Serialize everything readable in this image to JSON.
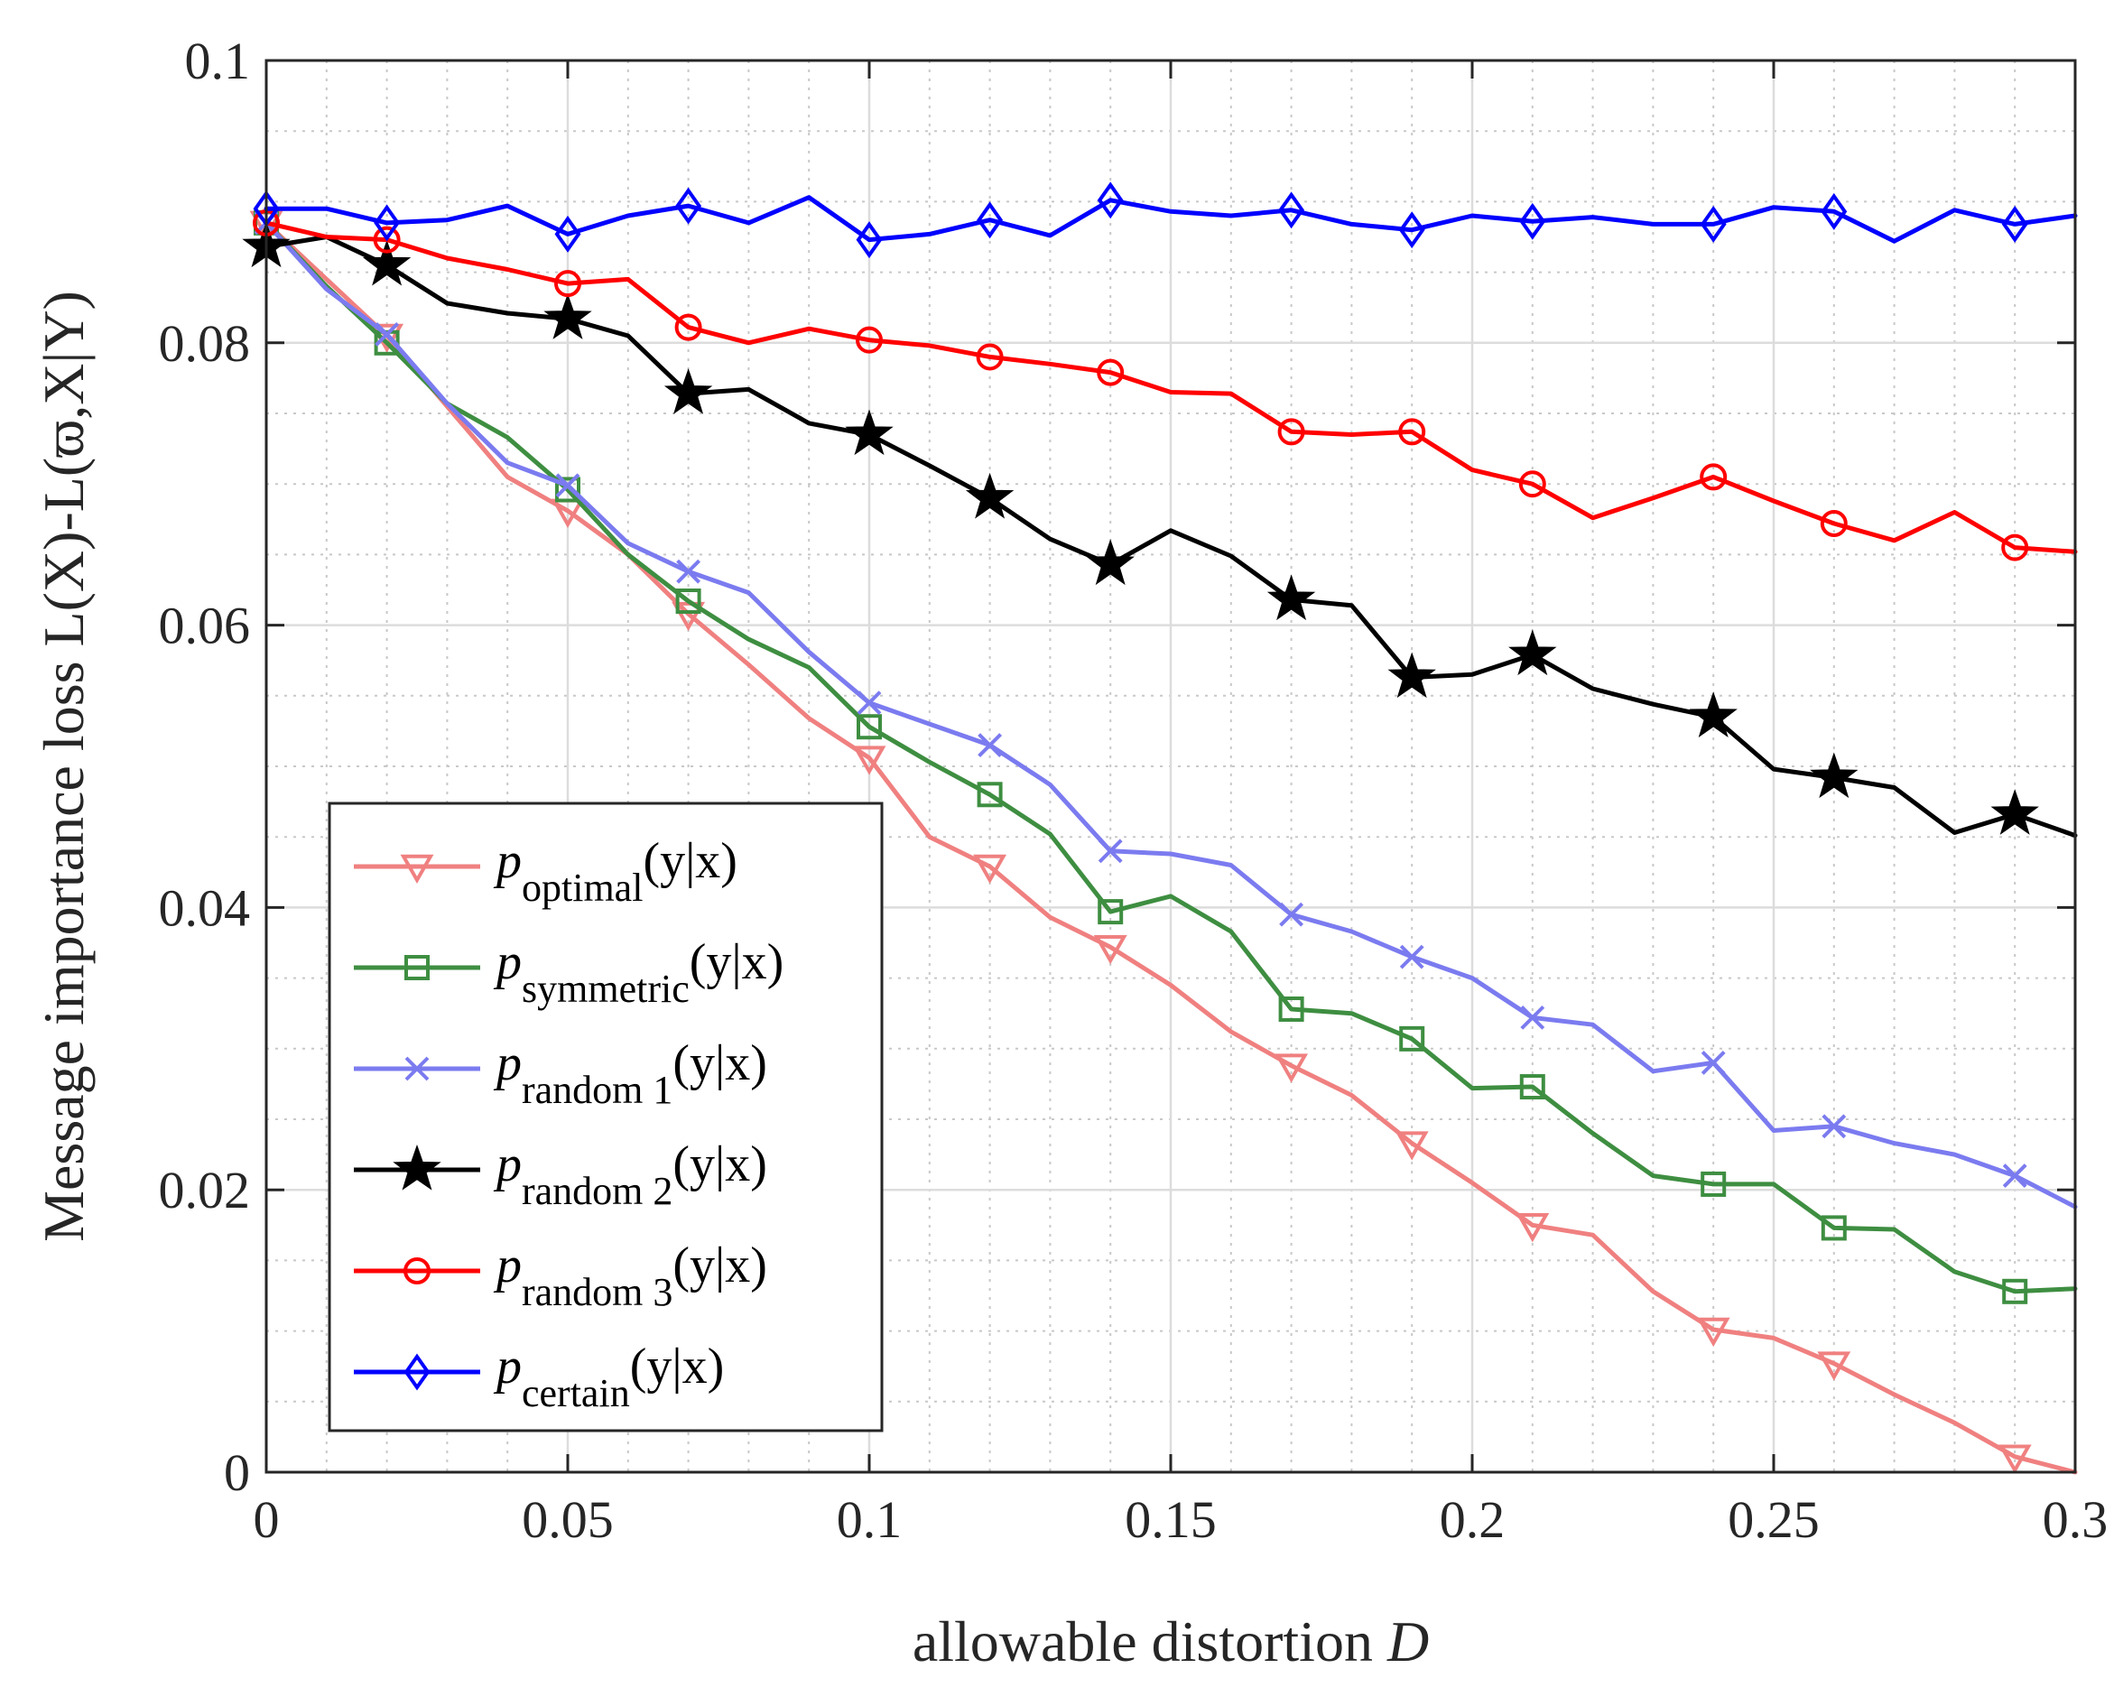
{
  "chart_data": {
    "type": "line",
    "title": "",
    "xlabel": "allowable distortion D",
    "xlabel_main": "allowable distortion",
    "xlabel_var": "D",
    "ylabel": "Message importance loss L(X)-L(ϖ,X|Y)",
    "xlim": [
      0,
      0.3
    ],
    "ylim": [
      0,
      0.1
    ],
    "xticks": [
      0,
      0.05,
      0.1,
      0.15,
      0.2,
      0.25,
      0.3
    ],
    "xtick_labels": [
      "0",
      "0.05",
      "0.1",
      "0.15",
      "0.2",
      "0.25",
      "0.3"
    ],
    "yticks": [
      0,
      0.02,
      0.04,
      0.06,
      0.08,
      0.1
    ],
    "ytick_labels": [
      "0",
      "0.02",
      "0.04",
      "0.06",
      "0.08",
      "0.1"
    ],
    "grid": true,
    "minor_grid": true,
    "legend_position": "bottom-left",
    "x": [
      0,
      0.01,
      0.02,
      0.03,
      0.04,
      0.05,
      0.06,
      0.07,
      0.08,
      0.09,
      0.1,
      0.11,
      0.12,
      0.13,
      0.14,
      0.15,
      0.16,
      0.17,
      0.18,
      0.19,
      0.2,
      0.21,
      0.22,
      0.23,
      0.24,
      0.25,
      0.26,
      0.27,
      0.28,
      0.29,
      0.3
    ],
    "series": [
      {
        "name": "p_optimal(y|x)",
        "var": "p",
        "sub": "optimal",
        "suffix": "(y|x)",
        "color": "#f08080",
        "marker": "triangle-down",
        "marker_indices": [
          0,
          2,
          5,
          7,
          10,
          12,
          14,
          17,
          19,
          21,
          24,
          26,
          29
        ],
        "values": [
          0.0885,
          0.0845,
          0.0805,
          0.0755,
          0.0705,
          0.0681,
          0.065,
          0.0608,
          0.0572,
          0.0534,
          0.0506,
          0.045,
          0.0429,
          0.0393,
          0.0372,
          0.0345,
          0.0312,
          0.0288,
          0.0267,
          0.0233,
          0.0205,
          0.0175,
          0.0168,
          0.0128,
          0.0101,
          0.0095,
          0.0077,
          0.0055,
          0.0035,
          0.0011,
          0.0
        ]
      },
      {
        "name": "p_symmetric(y|x)",
        "var": "p",
        "sub": "symmetric",
        "suffix": "(y|x)",
        "color": "#3e8e41",
        "marker": "square",
        "marker_indices": [
          0,
          2,
          5,
          7,
          10,
          12,
          14,
          17,
          19,
          21,
          24,
          26,
          29
        ],
        "values": [
          0.0885,
          0.084,
          0.08,
          0.0757,
          0.0733,
          0.0696,
          0.065,
          0.0617,
          0.059,
          0.057,
          0.0528,
          0.0503,
          0.048,
          0.0452,
          0.0397,
          0.0408,
          0.0383,
          0.0328,
          0.0325,
          0.0307,
          0.0272,
          0.0273,
          0.024,
          0.021,
          0.0204,
          0.0204,
          0.0173,
          0.0172,
          0.0142,
          0.0128,
          0.013
        ]
      },
      {
        "name": "p_random 1(y|x)",
        "var": "p",
        "sub": "random 1",
        "suffix": "(y|x)",
        "color": "#7b7bf0",
        "marker": "x",
        "marker_indices": [
          0,
          2,
          5,
          7,
          10,
          12,
          14,
          17,
          19,
          21,
          24,
          26,
          29
        ],
        "values": [
          0.0885,
          0.0838,
          0.0806,
          0.0757,
          0.0715,
          0.0699,
          0.0658,
          0.0638,
          0.0623,
          0.0581,
          0.0545,
          0.053,
          0.0515,
          0.0487,
          0.044,
          0.0438,
          0.043,
          0.0395,
          0.0383,
          0.0365,
          0.035,
          0.0322,
          0.0317,
          0.0284,
          0.029,
          0.0242,
          0.0245,
          0.0233,
          0.0225,
          0.021,
          0.0188
        ]
      },
      {
        "name": "p_random 2(y|x)",
        "var": "p",
        "sub": "random 2",
        "suffix": "(y|x)",
        "color": "#000000",
        "marker": "star",
        "marker_indices": [
          0,
          2,
          5,
          7,
          10,
          12,
          14,
          17,
          19,
          21,
          24,
          26,
          29
        ],
        "values": [
          0.0868,
          0.0875,
          0.0855,
          0.0828,
          0.0821,
          0.0817,
          0.0805,
          0.0764,
          0.0767,
          0.0743,
          0.0735,
          0.0713,
          0.069,
          0.0661,
          0.0643,
          0.0667,
          0.0649,
          0.0618,
          0.0614,
          0.0563,
          0.0565,
          0.0579,
          0.0555,
          0.0544,
          0.0535,
          0.0498,
          0.0492,
          0.0485,
          0.0453,
          0.0466,
          0.0451
        ]
      },
      {
        "name": "p_random 3(y|x)",
        "var": "p",
        "sub": "random 3",
        "suffix": "(y|x)",
        "color": "#ff0000",
        "marker": "circle",
        "marker_indices": [
          0,
          2,
          5,
          7,
          10,
          12,
          14,
          17,
          19,
          21,
          24,
          26,
          29
        ],
        "values": [
          0.0885,
          0.0875,
          0.0873,
          0.086,
          0.0852,
          0.0842,
          0.0845,
          0.0811,
          0.08,
          0.081,
          0.0802,
          0.0798,
          0.079,
          0.0785,
          0.0779,
          0.0765,
          0.0764,
          0.0737,
          0.0735,
          0.0737,
          0.071,
          0.07,
          0.0676,
          0.069,
          0.0705,
          0.0688,
          0.0672,
          0.066,
          0.068,
          0.0655,
          0.0652
        ]
      },
      {
        "name": "p_certain(y|x)",
        "var": "p",
        "sub": "certain",
        "suffix": "(y|x)",
        "color": "#0000ff",
        "marker": "diamond",
        "marker_indices": [
          0,
          2,
          5,
          7,
          10,
          12,
          14,
          17,
          19,
          21,
          24,
          26,
          29
        ],
        "values": [
          0.0895,
          0.0895,
          0.0885,
          0.0887,
          0.0897,
          0.0877,
          0.089,
          0.0897,
          0.0885,
          0.0903,
          0.0873,
          0.0877,
          0.0887,
          0.0876,
          0.0901,
          0.0893,
          0.089,
          0.0894,
          0.0884,
          0.088,
          0.089,
          0.0886,
          0.0889,
          0.0884,
          0.0884,
          0.0896,
          0.0893,
          0.0872,
          0.0894,
          0.0884,
          0.089
        ]
      }
    ]
  }
}
